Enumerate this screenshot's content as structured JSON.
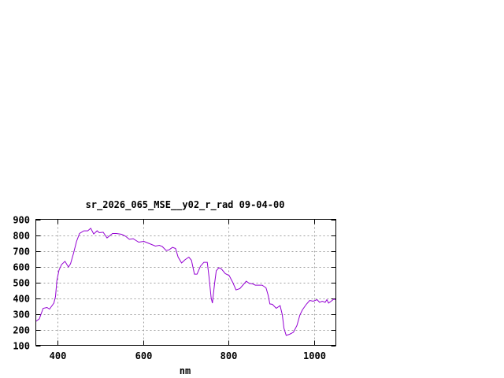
{
  "chart_data": {
    "type": "line",
    "title": "sr_2026_065_MSE__y02_r_rad 09-04-00",
    "xlabel": "nm",
    "ylabel": "",
    "xlim": [
      350,
      1050
    ],
    "ylim": [
      100,
      900
    ],
    "xticks": [
      400,
      600,
      800,
      1000
    ],
    "yticks": [
      100,
      200,
      300,
      400,
      500,
      600,
      700,
      800,
      900
    ],
    "grid": true,
    "line_color": "#9400d3",
    "series": [
      {
        "x": [
          350,
          358,
          367,
          376,
          382,
          392,
          396,
          399,
          404,
          410,
          418,
          426,
          431,
          438,
          445,
          452,
          462,
          471,
          478,
          485,
          493,
          498,
          507,
          516,
          529,
          538,
          550,
          559,
          568,
          577,
          590,
          602,
          614,
          629,
          638,
          645,
          654,
          660,
          669,
          676,
          682,
          690,
          698,
          707,
          713,
          720,
          726,
          734,
          742,
          750,
          754,
          759,
          762,
          767,
          771,
          777,
          783,
          792,
          801,
          809,
          817,
          826,
          834,
          841,
          848,
          856,
          862,
          878,
          887,
          892,
          896,
          902,
          911,
          920,
          925,
          929,
          934,
          942,
          951,
          959,
          966,
          972,
          981,
          989,
          997,
          1006,
          1012,
          1018,
          1025,
          1029,
          1033,
          1039,
          1045,
          1050
        ],
        "y": [
          252,
          268,
          335,
          340,
          330,
          368,
          410,
          510,
          577,
          613,
          633,
          597,
          618,
          685,
          760,
          810,
          827,
          827,
          843,
          807,
          827,
          815,
          818,
          782,
          810,
          810,
          805,
          793,
          773,
          777,
          755,
          760,
          747,
          730,
          735,
          727,
          702,
          705,
          722,
          715,
          660,
          623,
          643,
          660,
          640,
          552,
          552,
          602,
          627,
          627,
          535,
          402,
          368,
          493,
          573,
          593,
          585,
          555,
          543,
          502,
          452,
          460,
          485,
          507,
          493,
          490,
          482,
          482,
          465,
          418,
          363,
          360,
          335,
          352,
          293,
          208,
          163,
          170,
          183,
          225,
          292,
          325,
          360,
          385,
          380,
          390,
          373,
          380,
          373,
          390,
          368,
          380,
          393,
          390
        ]
      }
    ]
  }
}
